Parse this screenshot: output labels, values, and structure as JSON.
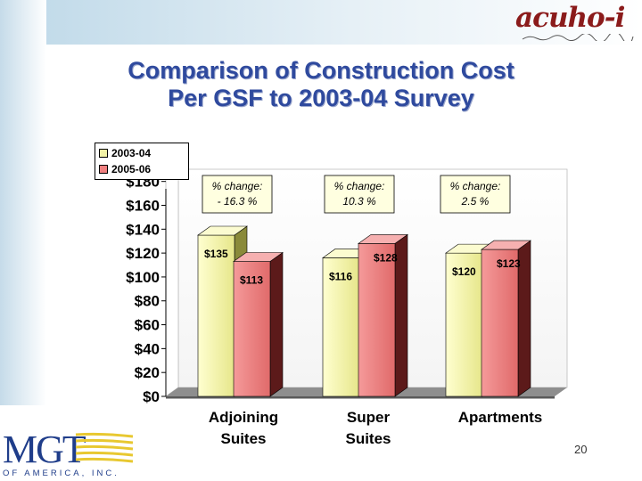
{
  "title": {
    "line1": "Comparison of Construction Cost",
    "line2": "Per GSF to 2003-04 Survey"
  },
  "logos": {
    "acuho": "acuho-i",
    "mgt": "MGT",
    "mgt_sub": "OF AMERICA, INC."
  },
  "page_number": "20",
  "colors": {
    "series_2003": "#f2f2a6",
    "series_2005": "#f08080",
    "title": "#2f4a9e",
    "band": "#c5dbe9"
  },
  "chart_data": {
    "type": "bar",
    "categories": [
      "Adjoining Suites",
      "Super Suites",
      "Apartments"
    ],
    "category_lines": [
      [
        "Adjoining",
        "Suites"
      ],
      [
        "Super",
        "Suites"
      ],
      [
        "Apartments"
      ]
    ],
    "series": [
      {
        "name": "2003-04",
        "values": [
          135,
          116,
          120
        ],
        "labels": [
          "$135",
          "$116",
          "$120"
        ]
      },
      {
        "name": "2005-06",
        "values": [
          113,
          128,
          123
        ],
        "labels": [
          "$113",
          "$128",
          "$123"
        ]
      }
    ],
    "yticks": [
      "$0",
      "$20",
      "$40",
      "$60",
      "$80",
      "$100",
      "$120",
      "$140",
      "$160",
      "$180"
    ],
    "ylim": [
      0,
      180
    ],
    "annotations": [
      {
        "line1": "% change:",
        "line2": "- 16.3 %"
      },
      {
        "line1": "% change:",
        "line2": "10.3 %"
      },
      {
        "line1": "% change:",
        "line2": "2.5 %"
      }
    ],
    "legend_position": "top-left",
    "grid": false
  }
}
